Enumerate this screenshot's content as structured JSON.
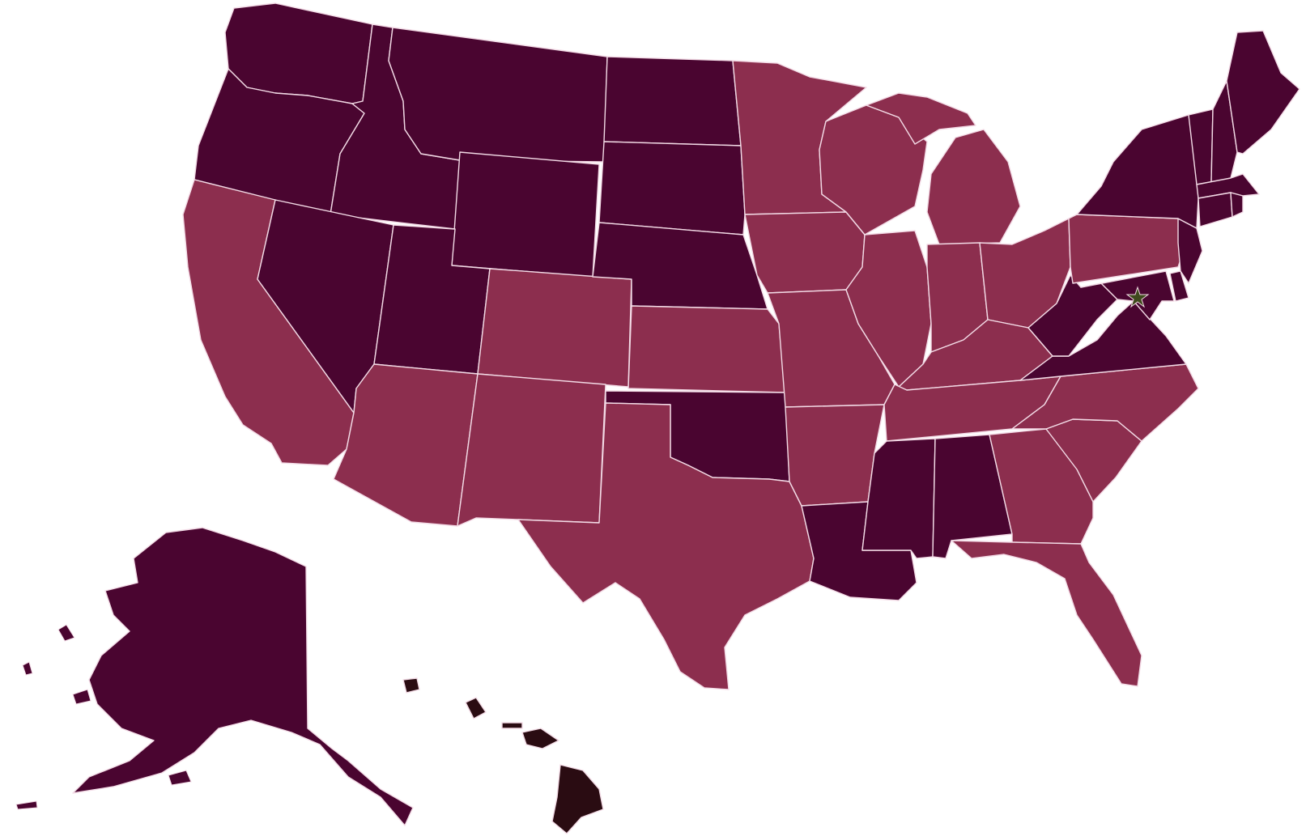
{
  "colors": {
    "background": "#ffffff",
    "dark": "#4a0530",
    "medium": "#8c2e4e",
    "hawaii": "#2a0c12",
    "border": "#f3dbe6",
    "capital_marker": "#3f4a1c"
  },
  "icons": {
    "capital": "star-icon"
  },
  "states": [
    {
      "id": "WA",
      "tone": "dark"
    },
    {
      "id": "OR",
      "tone": "dark"
    },
    {
      "id": "CA",
      "tone": "medium"
    },
    {
      "id": "ID",
      "tone": "dark"
    },
    {
      "id": "NV",
      "tone": "dark"
    },
    {
      "id": "MT",
      "tone": "dark"
    },
    {
      "id": "WY",
      "tone": "dark"
    },
    {
      "id": "UT",
      "tone": "dark"
    },
    {
      "id": "AZ",
      "tone": "medium"
    },
    {
      "id": "CO",
      "tone": "medium"
    },
    {
      "id": "NM",
      "tone": "medium"
    },
    {
      "id": "ND",
      "tone": "dark"
    },
    {
      "id": "SD",
      "tone": "dark"
    },
    {
      "id": "NE",
      "tone": "dark"
    },
    {
      "id": "KS",
      "tone": "medium"
    },
    {
      "id": "OK",
      "tone": "dark"
    },
    {
      "id": "TX",
      "tone": "medium"
    },
    {
      "id": "MN",
      "tone": "medium"
    },
    {
      "id": "IA",
      "tone": "medium"
    },
    {
      "id": "MO",
      "tone": "medium"
    },
    {
      "id": "AR",
      "tone": "medium"
    },
    {
      "id": "LA",
      "tone": "dark"
    },
    {
      "id": "WI",
      "tone": "medium"
    },
    {
      "id": "IL",
      "tone": "medium"
    },
    {
      "id": "MI",
      "tone": "medium"
    },
    {
      "id": "IN",
      "tone": "medium"
    },
    {
      "id": "OH",
      "tone": "medium"
    },
    {
      "id": "KY",
      "tone": "medium"
    },
    {
      "id": "TN",
      "tone": "medium"
    },
    {
      "id": "MS",
      "tone": "dark"
    },
    {
      "id": "AL",
      "tone": "dark"
    },
    {
      "id": "GA",
      "tone": "medium"
    },
    {
      "id": "FL",
      "tone": "medium"
    },
    {
      "id": "SC",
      "tone": "medium"
    },
    {
      "id": "NC",
      "tone": "medium"
    },
    {
      "id": "VA",
      "tone": "dark"
    },
    {
      "id": "WV",
      "tone": "dark"
    },
    {
      "id": "PA",
      "tone": "medium"
    },
    {
      "id": "NY",
      "tone": "dark"
    },
    {
      "id": "NJ",
      "tone": "dark"
    },
    {
      "id": "DE",
      "tone": "dark"
    },
    {
      "id": "MD",
      "tone": "dark"
    },
    {
      "id": "VT",
      "tone": "dark"
    },
    {
      "id": "NH",
      "tone": "dark"
    },
    {
      "id": "ME",
      "tone": "dark"
    },
    {
      "id": "MA",
      "tone": "dark"
    },
    {
      "id": "CT",
      "tone": "dark"
    },
    {
      "id": "RI",
      "tone": "dark"
    },
    {
      "id": "AK",
      "tone": "dark"
    },
    {
      "id": "HI",
      "tone": "hawaii"
    }
  ]
}
